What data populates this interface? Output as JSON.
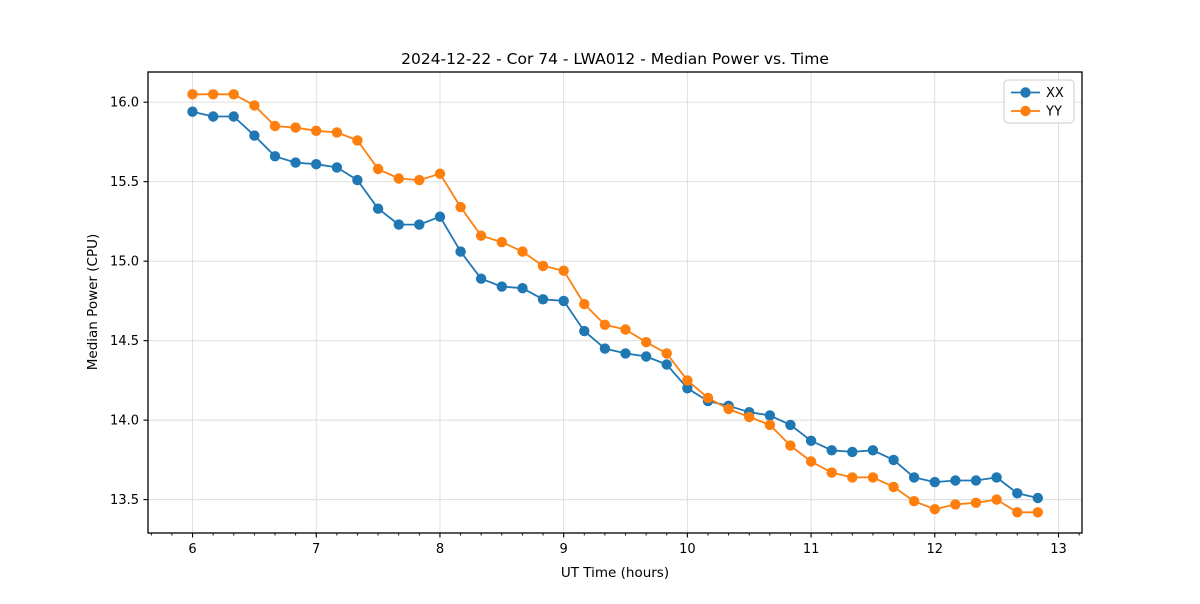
{
  "chart_data": {
    "type": "line",
    "title": "2024-12-22 - Cor 74 - LWA012 - Median Power vs. Time",
    "xlabel": "UT Time (hours)",
    "ylabel": "Median Power (CPU)",
    "xlim": [
      5.64,
      13.19
    ],
    "ylim": [
      13.29,
      16.19
    ],
    "xticks": [
      6,
      7,
      8,
      9,
      10,
      11,
      12,
      13
    ],
    "xticklabels": [
      "6",
      "7",
      "8",
      "9",
      "10",
      "11",
      "12",
      "13"
    ],
    "yticks": [
      13.5,
      14.0,
      14.5,
      15.0,
      15.5,
      16.0
    ],
    "yticklabels": [
      "13.5",
      "14.0",
      "14.5",
      "15.0",
      "15.5",
      "16.0"
    ],
    "x_minor_tick_step": 0.1666667,
    "grid": true,
    "legend_position": "upper right",
    "colors": {
      "background": "#ffffff",
      "spine": "#000000",
      "grid": "#dcdcdc",
      "legend_border": "#cccccc",
      "series_xx": "#1f77b4",
      "series_yy": "#ff7f0e"
    },
    "x": [
      6.0,
      6.167,
      6.333,
      6.5,
      6.667,
      6.833,
      7.0,
      7.167,
      7.333,
      7.5,
      7.667,
      7.833,
      8.0,
      8.167,
      8.333,
      8.5,
      8.667,
      8.833,
      9.0,
      9.167,
      9.333,
      9.5,
      9.667,
      9.833,
      10.0,
      10.167,
      10.333,
      10.5,
      10.667,
      10.833,
      11.0,
      11.167,
      11.333,
      11.5,
      11.667,
      11.833,
      12.0,
      12.167,
      12.333,
      12.5,
      12.667,
      12.833
    ],
    "series": [
      {
        "name": "XX",
        "color": "#1f77b4",
        "values": [
          15.94,
          15.91,
          15.91,
          15.79,
          15.66,
          15.62,
          15.61,
          15.59,
          15.51,
          15.33,
          15.23,
          15.23,
          15.28,
          15.06,
          14.89,
          14.84,
          14.83,
          14.76,
          14.75,
          14.56,
          14.45,
          14.42,
          14.4,
          14.35,
          14.2,
          14.12,
          14.09,
          14.05,
          14.03,
          13.97,
          13.87,
          13.81,
          13.8,
          13.81,
          13.75,
          13.64,
          13.61,
          13.62,
          13.62,
          13.64,
          13.54,
          13.51
        ]
      },
      {
        "name": "YY",
        "color": "#ff7f0e",
        "values": [
          16.05,
          16.05,
          16.05,
          15.98,
          15.85,
          15.84,
          15.82,
          15.81,
          15.76,
          15.58,
          15.52,
          15.51,
          15.55,
          15.34,
          15.16,
          15.12,
          15.06,
          14.97,
          14.94,
          14.73,
          14.6,
          14.57,
          14.49,
          14.42,
          14.25,
          14.14,
          14.07,
          14.02,
          13.97,
          13.84,
          13.74,
          13.67,
          13.64,
          13.64,
          13.58,
          13.49,
          13.44,
          13.47,
          13.48,
          13.5,
          13.42,
          13.42
        ]
      }
    ]
  }
}
